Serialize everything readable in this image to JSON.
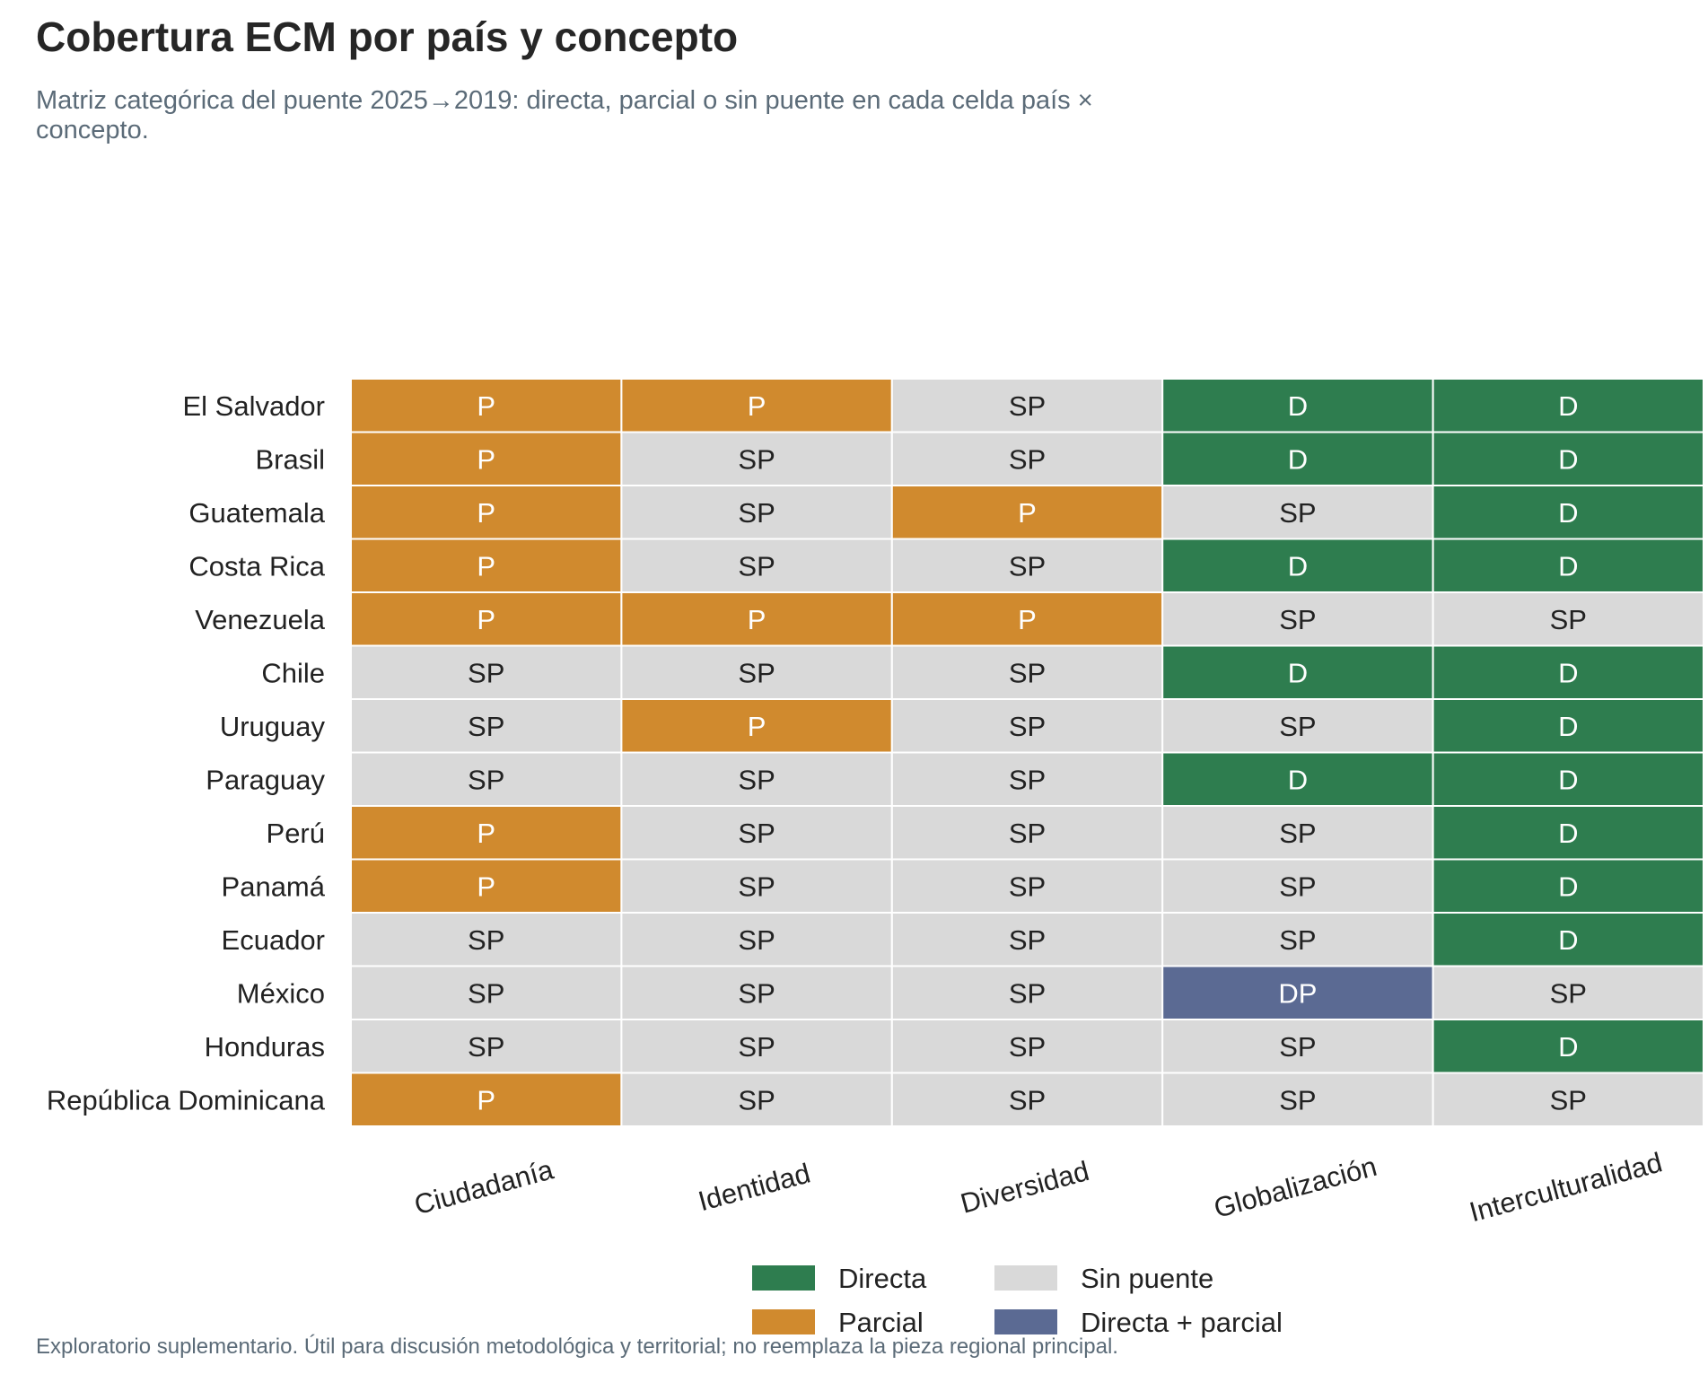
{
  "chart_data": {
    "type": "heatmap",
    "title": "Cobertura ECM por país y concepto",
    "subtitle": "Matriz categórica del puente 2025→2019: directa, parcial o sin puente en cada celda país × concepto.",
    "footnote": "Exploratorio suplementario. Útil para discusión metodológica y territorial; no reemplaza la pieza regional principal.",
    "columns": [
      "Ciudadanía",
      "Identidad",
      "Diversidad",
      "Globalización",
      "Interculturalidad"
    ],
    "rows": [
      "El Salvador",
      "Brasil",
      "Guatemala",
      "Costa Rica",
      "Venezuela",
      "Chile",
      "Uruguay",
      "Paraguay",
      "Perú",
      "Panamá",
      "Ecuador",
      "México",
      "Honduras",
      "República Dominicana"
    ],
    "values": [
      [
        "P",
        "P",
        "SP",
        "D",
        "D"
      ],
      [
        "P",
        "SP",
        "SP",
        "D",
        "D"
      ],
      [
        "P",
        "SP",
        "P",
        "SP",
        "D"
      ],
      [
        "P",
        "SP",
        "SP",
        "D",
        "D"
      ],
      [
        "P",
        "P",
        "P",
        "SP",
        "SP"
      ],
      [
        "SP",
        "SP",
        "SP",
        "D",
        "D"
      ],
      [
        "SP",
        "P",
        "SP",
        "SP",
        "D"
      ],
      [
        "SP",
        "SP",
        "SP",
        "D",
        "D"
      ],
      [
        "P",
        "SP",
        "SP",
        "SP",
        "D"
      ],
      [
        "P",
        "SP",
        "SP",
        "SP",
        "D"
      ],
      [
        "SP",
        "SP",
        "SP",
        "SP",
        "D"
      ],
      [
        "SP",
        "SP",
        "SP",
        "DP",
        "SP"
      ],
      [
        "SP",
        "SP",
        "SP",
        "SP",
        "D"
      ],
      [
        "P",
        "SP",
        "SP",
        "SP",
        "SP"
      ]
    ],
    "categories": {
      "D": {
        "label": "Directa",
        "color": "#2e7d4f",
        "text_color": "#ffffff"
      },
      "P": {
        "label": "Parcial",
        "color": "#d08a2e",
        "text_color": "#ffffff"
      },
      "SP": {
        "label": "Sin puente",
        "color": "#d9d9d9",
        "text_color": "#222222"
      },
      "DP": {
        "label": "Directa + parcial",
        "color": "#5b6a93",
        "text_color": "#ffffff"
      }
    },
    "legend_order": [
      "D",
      "SP",
      "P",
      "DP"
    ],
    "legend_position": "bottom-center"
  }
}
